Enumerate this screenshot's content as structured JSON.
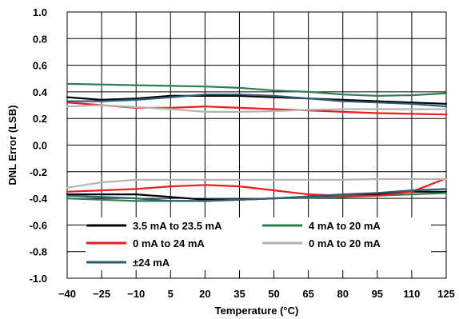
{
  "chart_data": {
    "type": "line",
    "title": "",
    "xlabel": "Temperature (°C)",
    "ylabel": "DNL Error (LSB)",
    "xlim": [
      -40,
      125
    ],
    "ylim": [
      -1.0,
      1.0
    ],
    "grid": true,
    "x_ticks": [
      -40,
      -25,
      -10,
      5,
      20,
      35,
      50,
      65,
      80,
      95,
      110,
      125
    ],
    "x_tick_labels": [
      "−40",
      "−25",
      "−10",
      "5",
      "20",
      "35",
      "50",
      "65",
      "80",
      "95",
      "110",
      "125"
    ],
    "y_ticks": [
      1.0,
      0.8,
      0.6,
      0.4,
      0.2,
      0.0,
      -0.2,
      -0.4,
      -0.6,
      -0.8,
      -1.0
    ],
    "y_tick_labels": [
      "1.0",
      "0.8",
      "0.6",
      "0.4",
      "0.2",
      "0.0",
      "-0.2",
      "-0.4",
      "-0.6",
      "-0.8",
      "-1.0"
    ],
    "legend_position": "bottom-inside",
    "series": [
      {
        "name": "3.5 mA to 23.5 mA",
        "color": "#000000",
        "group": "upper",
        "x": [
          -40,
          -25,
          -10,
          5,
          20,
          35,
          50,
          65,
          80,
          95,
          110,
          125
        ],
        "y": [
          0.36,
          0.34,
          0.35,
          0.37,
          0.37,
          0.37,
          0.36,
          0.35,
          0.34,
          0.33,
          0.32,
          0.31
        ]
      },
      {
        "name": "4 mA to 20 mA",
        "color": "#2E7D4F",
        "group": "upper",
        "x": [
          -40,
          -25,
          -10,
          5,
          20,
          35,
          50,
          65,
          80,
          95,
          110,
          125
        ],
        "y": [
          0.46,
          0.455,
          0.45,
          0.445,
          0.44,
          0.43,
          0.41,
          0.4,
          0.38,
          0.37,
          0.375,
          0.39
        ]
      },
      {
        "name": "0 mA to 24 mA",
        "color": "#EE1C1C",
        "group": "upper",
        "x": [
          -40,
          -25,
          -10,
          5,
          20,
          35,
          50,
          65,
          80,
          95,
          110,
          125
        ],
        "y": [
          0.32,
          0.3,
          0.28,
          0.28,
          0.29,
          0.28,
          0.27,
          0.26,
          0.25,
          0.24,
          0.235,
          0.23
        ]
      },
      {
        "name": "0 mA to 20 mA",
        "color": "#B3B3B3",
        "group": "upper",
        "x": [
          -40,
          -25,
          -10,
          5,
          20,
          35,
          50,
          65,
          80,
          95,
          110,
          125
        ],
        "y": [
          0.29,
          0.3,
          0.285,
          0.27,
          0.25,
          0.25,
          0.255,
          0.265,
          0.27,
          0.27,
          0.27,
          0.27
        ]
      },
      {
        "name": "±24 mA",
        "color": "#2F5B73",
        "group": "upper",
        "x": [
          -40,
          -25,
          -10,
          5,
          20,
          35,
          50,
          65,
          80,
          95,
          110,
          125
        ],
        "y": [
          0.33,
          0.33,
          0.34,
          0.36,
          0.38,
          0.38,
          0.37,
          0.35,
          0.33,
          0.32,
          0.31,
          0.29
        ]
      },
      {
        "name": "3.5 mA to 23.5 mA",
        "color": "#000000",
        "group": "lower",
        "x": [
          -40,
          -25,
          -10,
          5,
          20,
          35,
          50,
          65,
          80,
          95,
          110,
          125
        ],
        "y": [
          -0.37,
          -0.37,
          -0.37,
          -0.39,
          -0.41,
          -0.41,
          -0.4,
          -0.39,
          -0.38,
          -0.37,
          -0.35,
          -0.35
        ]
      },
      {
        "name": "4 mA to 20 mA",
        "color": "#2E7D4F",
        "group": "lower",
        "x": [
          -40,
          -25,
          -10,
          5,
          20,
          35,
          50,
          65,
          80,
          95,
          110,
          125
        ],
        "y": [
          -0.4,
          -0.41,
          -0.42,
          -0.42,
          -0.42,
          -0.41,
          -0.4,
          -0.395,
          -0.39,
          -0.38,
          -0.37,
          -0.36
        ]
      },
      {
        "name": "0 mA to 24 mA",
        "color": "#EE1C1C",
        "group": "lower",
        "x": [
          -40,
          -25,
          -10,
          5,
          20,
          35,
          50,
          65,
          80,
          95,
          110,
          125
        ],
        "y": [
          -0.35,
          -0.34,
          -0.33,
          -0.31,
          -0.3,
          -0.31,
          -0.34,
          -0.37,
          -0.38,
          -0.38,
          -0.35,
          -0.25
        ]
      },
      {
        "name": "0 mA to 20 mA",
        "color": "#B3B3B3",
        "group": "lower",
        "x": [
          -40,
          -25,
          -10,
          5,
          20,
          35,
          50,
          65,
          80,
          95,
          110,
          125
        ],
        "y": [
          -0.32,
          -0.28,
          -0.26,
          -0.26,
          -0.26,
          -0.26,
          -0.26,
          -0.26,
          -0.26,
          -0.255,
          -0.255,
          -0.255
        ]
      },
      {
        "name": "±24 mA",
        "color": "#2F5B73",
        "group": "lower",
        "x": [
          -40,
          -25,
          -10,
          5,
          20,
          35,
          50,
          65,
          80,
          95,
          110,
          125
        ],
        "y": [
          -0.38,
          -0.39,
          -0.4,
          -0.42,
          -0.42,
          -0.41,
          -0.4,
          -0.385,
          -0.37,
          -0.36,
          -0.34,
          -0.33
        ]
      }
    ],
    "legend": [
      {
        "name": "3.5 mA to 23.5 mA",
        "color": "#000000"
      },
      {
        "name": "4 mA to 20 mA",
        "color": "#2E7D4F"
      },
      {
        "name": "0 mA to 24 mA",
        "color": "#EE1C1C"
      },
      {
        "name": "0 mA to 20 mA",
        "color": "#B3B3B3"
      },
      {
        "name": "±24 mA",
        "color": "#2F5B73"
      }
    ]
  }
}
